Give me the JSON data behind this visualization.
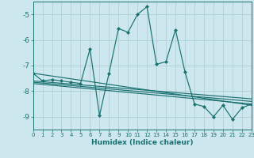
{
  "title": "",
  "xlabel": "Humidex (Indice chaleur)",
  "background_color": "#cce8ee",
  "grid_color": "#aacccc",
  "line_color": "#1a7070",
  "xlim": [
    0,
    23
  ],
  "ylim": [
    -9.5,
    -4.5
  ],
  "yticks": [
    -9,
    -8,
    -7,
    -6,
    -5
  ],
  "main_series": [
    [
      0,
      -7.3
    ],
    [
      1,
      -7.6
    ],
    [
      2,
      -7.55
    ],
    [
      3,
      -7.6
    ],
    [
      4,
      -7.65
    ],
    [
      5,
      -7.7
    ],
    [
      6,
      -6.35
    ],
    [
      7,
      -8.95
    ],
    [
      8,
      -7.3
    ],
    [
      9,
      -5.55
    ],
    [
      10,
      -5.7
    ],
    [
      11,
      -5.0
    ],
    [
      12,
      -4.7
    ],
    [
      13,
      -6.95
    ],
    [
      14,
      -6.85
    ],
    [
      15,
      -5.6
    ],
    [
      16,
      -7.25
    ],
    [
      17,
      -8.5
    ],
    [
      18,
      -8.6
    ],
    [
      19,
      -9.0
    ],
    [
      20,
      -8.55
    ],
    [
      21,
      -9.1
    ],
    [
      22,
      -8.65
    ],
    [
      23,
      -8.5
    ]
  ],
  "straight_lines": [
    [
      [
        0,
        -7.3
      ],
      [
        23,
        -8.55
      ]
    ],
    [
      [
        0,
        -7.6
      ],
      [
        23,
        -8.3
      ]
    ],
    [
      [
        0,
        -7.65
      ],
      [
        23,
        -8.4
      ]
    ],
    [
      [
        0,
        -7.7
      ],
      [
        23,
        -8.5
      ]
    ]
  ]
}
